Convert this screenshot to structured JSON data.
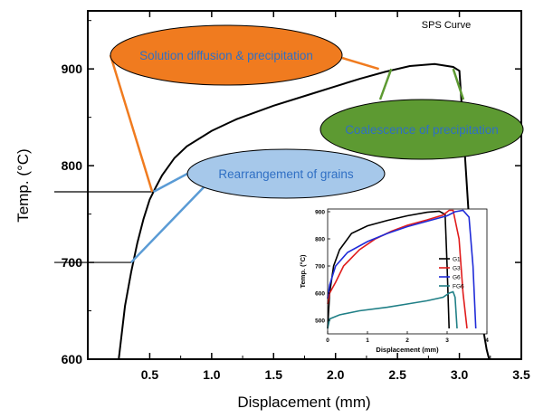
{
  "chart_data": [
    {
      "type": "line",
      "title": "SPS Curve",
      "xlabel": "Displacement (mm)",
      "ylabel": "Temp. (°C)",
      "xlim": [
        0.0,
        3.5
      ],
      "ylim": [
        600,
        960
      ],
      "x_ticks": [
        "0.5",
        "1.0",
        "1.5",
        "2.0",
        "2.5",
        "3.0",
        "3.5"
      ],
      "y_ticks": [
        "600",
        "700",
        "800",
        "900"
      ],
      "series": [
        {
          "color": "#000000",
          "points": [
            [
              0.25,
              600
            ],
            [
              0.3,
              655
            ],
            [
              0.35,
              690
            ],
            [
              0.4,
              720
            ],
            [
              0.45,
              745
            ],
            [
              0.5,
              765
            ],
            [
              0.55,
              778
            ],
            [
              0.6,
              790
            ],
            [
              0.7,
              808
            ],
            [
              0.8,
              820
            ],
            [
              1.0,
              836
            ],
            [
              1.2,
              848
            ],
            [
              1.5,
              862
            ],
            [
              1.8,
              874
            ],
            [
              2.0,
              882
            ],
            [
              2.2,
              890
            ],
            [
              2.4,
              897
            ],
            [
              2.6,
              903
            ],
            [
              2.8,
              905
            ],
            [
              2.95,
              902
            ],
            [
              3.0,
              898
            ],
            [
              3.03,
              840
            ],
            [
              3.08,
              740
            ],
            [
              3.13,
              680
            ],
            [
              3.18,
              640
            ],
            [
              3.22,
              610
            ],
            [
              3.24,
              600
            ]
          ]
        }
      ],
      "reference_lines": [
        {
          "y": 773,
          "x_end": 0.53
        },
        {
          "y": 700,
          "x_end": 0.35
        }
      ],
      "annotations": [
        {
          "text": "Solution diffusion & precipitation",
          "color": "#f07b1f",
          "points_to": [
            [
              0.52,
              773
            ],
            [
              2.35,
              900
            ]
          ]
        },
        {
          "text": "Rearrangement of grains",
          "color": "#a6c8ea",
          "points_to": [
            [
              0.53,
              773
            ],
            [
              0.35,
              700
            ]
          ]
        },
        {
          "text": "Coalescence of precipitation",
          "color": "#5d9a32",
          "points_to": [
            [
              2.45,
              900
            ],
            [
              2.95,
              900
            ]
          ]
        }
      ]
    },
    {
      "type": "line",
      "xlabel": "Displacement (mm)",
      "ylabel": "Temp. (°C)",
      "xlim": [
        0,
        4
      ],
      "ylim": [
        450,
        910
      ],
      "x_ticks": [
        "0",
        "1",
        "2",
        "3",
        "4"
      ],
      "y_ticks": [
        "500",
        "600",
        "700",
        "800",
        "900"
      ],
      "legend_position": "center-right",
      "series": [
        {
          "name": "G1",
          "color": "#000000",
          "points": [
            [
              0.0,
              470
            ],
            [
              0.05,
              600
            ],
            [
              0.15,
              700
            ],
            [
              0.3,
              760
            ],
            [
              0.6,
              820
            ],
            [
              1.0,
              848
            ],
            [
              1.5,
              868
            ],
            [
              2.0,
              885
            ],
            [
              2.5,
              898
            ],
            [
              2.8,
              902
            ],
            [
              2.95,
              890
            ],
            [
              3.0,
              700
            ],
            [
              3.05,
              470
            ]
          ]
        },
        {
          "name": "G3",
          "color": "#e01c1c",
          "points": [
            [
              0.0,
              560
            ],
            [
              0.05,
              600
            ],
            [
              0.2,
              640
            ],
            [
              0.4,
              700
            ],
            [
              0.8,
              760
            ],
            [
              1.2,
              800
            ],
            [
              1.6,
              828
            ],
            [
              2.0,
              850
            ],
            [
              2.5,
              870
            ],
            [
              2.9,
              888
            ],
            [
              3.05,
              905
            ],
            [
              3.15,
              905
            ],
            [
              3.3,
              800
            ],
            [
              3.4,
              600
            ],
            [
              3.5,
              470
            ]
          ]
        },
        {
          "name": "G6",
          "color": "#1f2bd8",
          "points": [
            [
              0.0,
              580
            ],
            [
              0.05,
              630
            ],
            [
              0.2,
              700
            ],
            [
              0.5,
              750
            ],
            [
              1.0,
              790
            ],
            [
              1.5,
              820
            ],
            [
              2.0,
              845
            ],
            [
              2.5,
              865
            ],
            [
              3.0,
              885
            ],
            [
              3.2,
              900
            ],
            [
              3.4,
              905
            ],
            [
              3.55,
              880
            ],
            [
              3.65,
              700
            ],
            [
              3.72,
              470
            ]
          ]
        },
        {
          "name": "FG6",
          "color": "#1f7f86",
          "points": [
            [
              0.0,
              470
            ],
            [
              0.05,
              505
            ],
            [
              0.3,
              520
            ],
            [
              0.8,
              535
            ],
            [
              1.5,
              548
            ],
            [
              2.0,
              560
            ],
            [
              2.5,
              572
            ],
            [
              2.9,
              585
            ],
            [
              3.05,
              600
            ],
            [
              3.15,
              605
            ],
            [
              3.2,
              585
            ],
            [
              3.25,
              470
            ]
          ]
        }
      ]
    }
  ]
}
